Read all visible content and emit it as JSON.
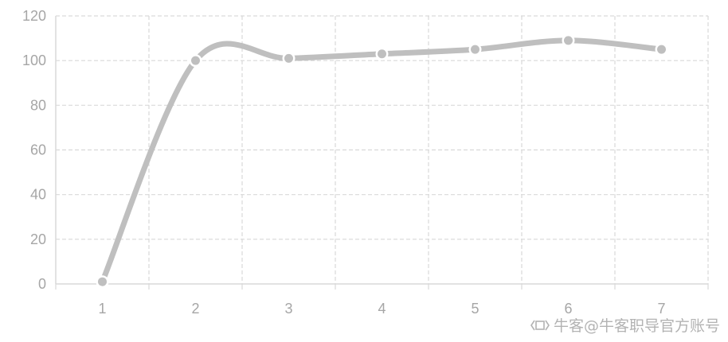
{
  "chart_data": {
    "type": "line",
    "title": "",
    "xlabel": "",
    "ylabel": "",
    "x": [
      1,
      2,
      3,
      4,
      5,
      6,
      7
    ],
    "series": [
      {
        "values": [
          1,
          100,
          101,
          103,
          105,
          109,
          105
        ],
        "color": "#bfbfbf"
      }
    ],
    "ylim": [
      0,
      120
    ],
    "yticks": [
      0,
      20,
      40,
      60,
      80,
      100,
      120
    ],
    "grid": true,
    "smooth": true,
    "colors": {
      "line": "#bfbfbf",
      "grid": "#d9d9d9",
      "axis": "#d9d9d9",
      "tick_text": "#a6a6a6"
    }
  },
  "watermark": {
    "icon": "watermark-logo-icon",
    "text": "牛客@牛客职导官方账号"
  }
}
